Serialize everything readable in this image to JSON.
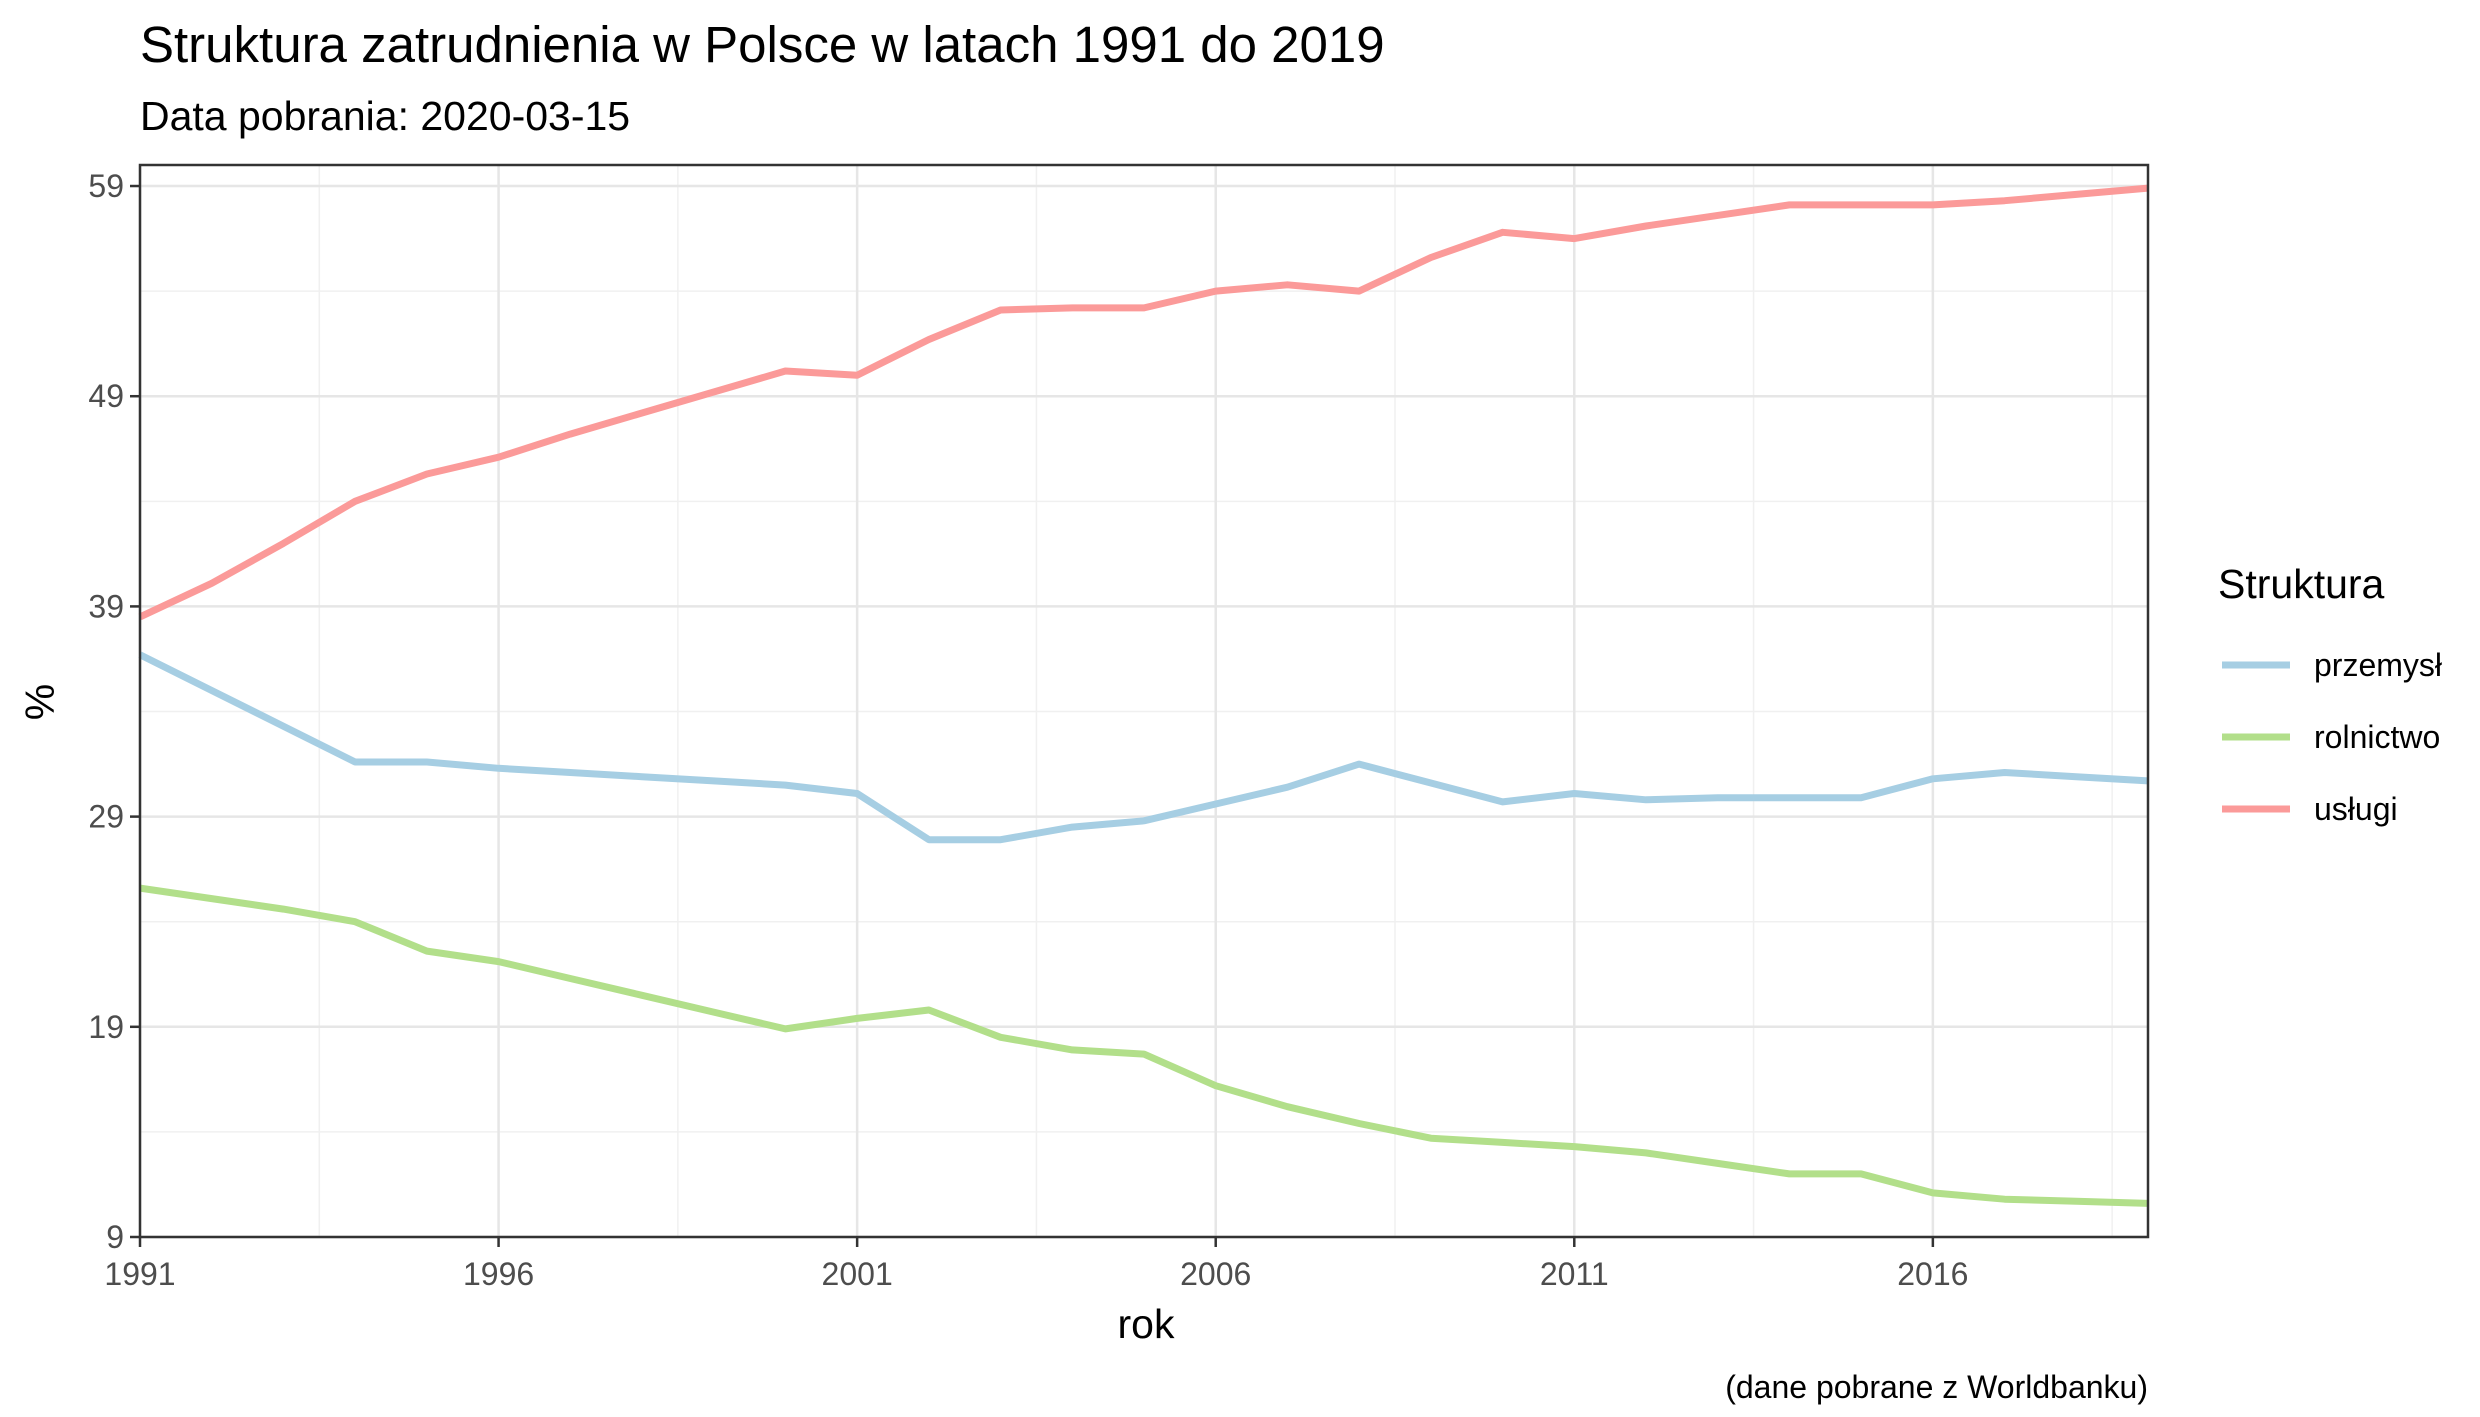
{
  "chart_data": {
    "type": "line",
    "title": "Struktura zatrudnienia w Polsce w latach 1991 do  2019",
    "subtitle": "Data pobrania: 2020-03-15",
    "xlabel": "rok",
    "ylabel": "%",
    "caption": "(dane pobrane z Worldbanku)",
    "xlim": [
      1991,
      2019
    ],
    "ylim": [
      9,
      60
    ],
    "x_ticks": [
      1991,
      1996,
      2001,
      2006,
      2011,
      2016
    ],
    "y_ticks": [
      9,
      19,
      29,
      39,
      49,
      59
    ],
    "grid": true,
    "legend": {
      "title": "Struktura",
      "position": "right"
    },
    "x": [
      1991,
      1992,
      1993,
      1994,
      1995,
      1996,
      1997,
      1998,
      1999,
      2000,
      2001,
      2002,
      2003,
      2004,
      2005,
      2006,
      2007,
      2008,
      2009,
      2010,
      2011,
      2012,
      2013,
      2014,
      2015,
      2016,
      2017,
      2018,
      2019
    ],
    "series": [
      {
        "name": "przemysł",
        "color": "#a6cee3",
        "values": [
          36.7,
          35.0,
          33.3,
          31.6,
          31.6,
          31.3,
          31.1,
          30.9,
          30.7,
          30.5,
          30.1,
          27.9,
          27.9,
          28.5,
          28.8,
          29.6,
          30.4,
          31.5,
          30.6,
          29.7,
          30.1,
          29.8,
          29.9,
          29.9,
          29.9,
          30.8,
          31.1,
          30.9,
          30.7
        ]
      },
      {
        "name": "rolnictwo",
        "color": "#b2df8a",
        "values": [
          25.6,
          25.1,
          24.6,
          24.0,
          22.6,
          22.1,
          21.3,
          20.5,
          19.7,
          18.9,
          19.4,
          19.8,
          18.5,
          17.9,
          17.7,
          16.2,
          15.2,
          14.4,
          13.7,
          13.5,
          13.3,
          13.0,
          12.5,
          12.0,
          12.0,
          11.1,
          10.8,
          10.7,
          10.6
        ]
      },
      {
        "name": "usługi",
        "color": "#fb9a99",
        "values": [
          38.5,
          40.1,
          42.0,
          44.0,
          45.3,
          46.1,
          47.2,
          48.2,
          49.2,
          50.2,
          50.0,
          51.7,
          53.1,
          53.2,
          53.2,
          54.0,
          54.3,
          54.0,
          55.6,
          56.8,
          56.5,
          57.1,
          57.6,
          58.1,
          58.1,
          58.1,
          58.3,
          58.6,
          58.9
        ]
      }
    ]
  }
}
